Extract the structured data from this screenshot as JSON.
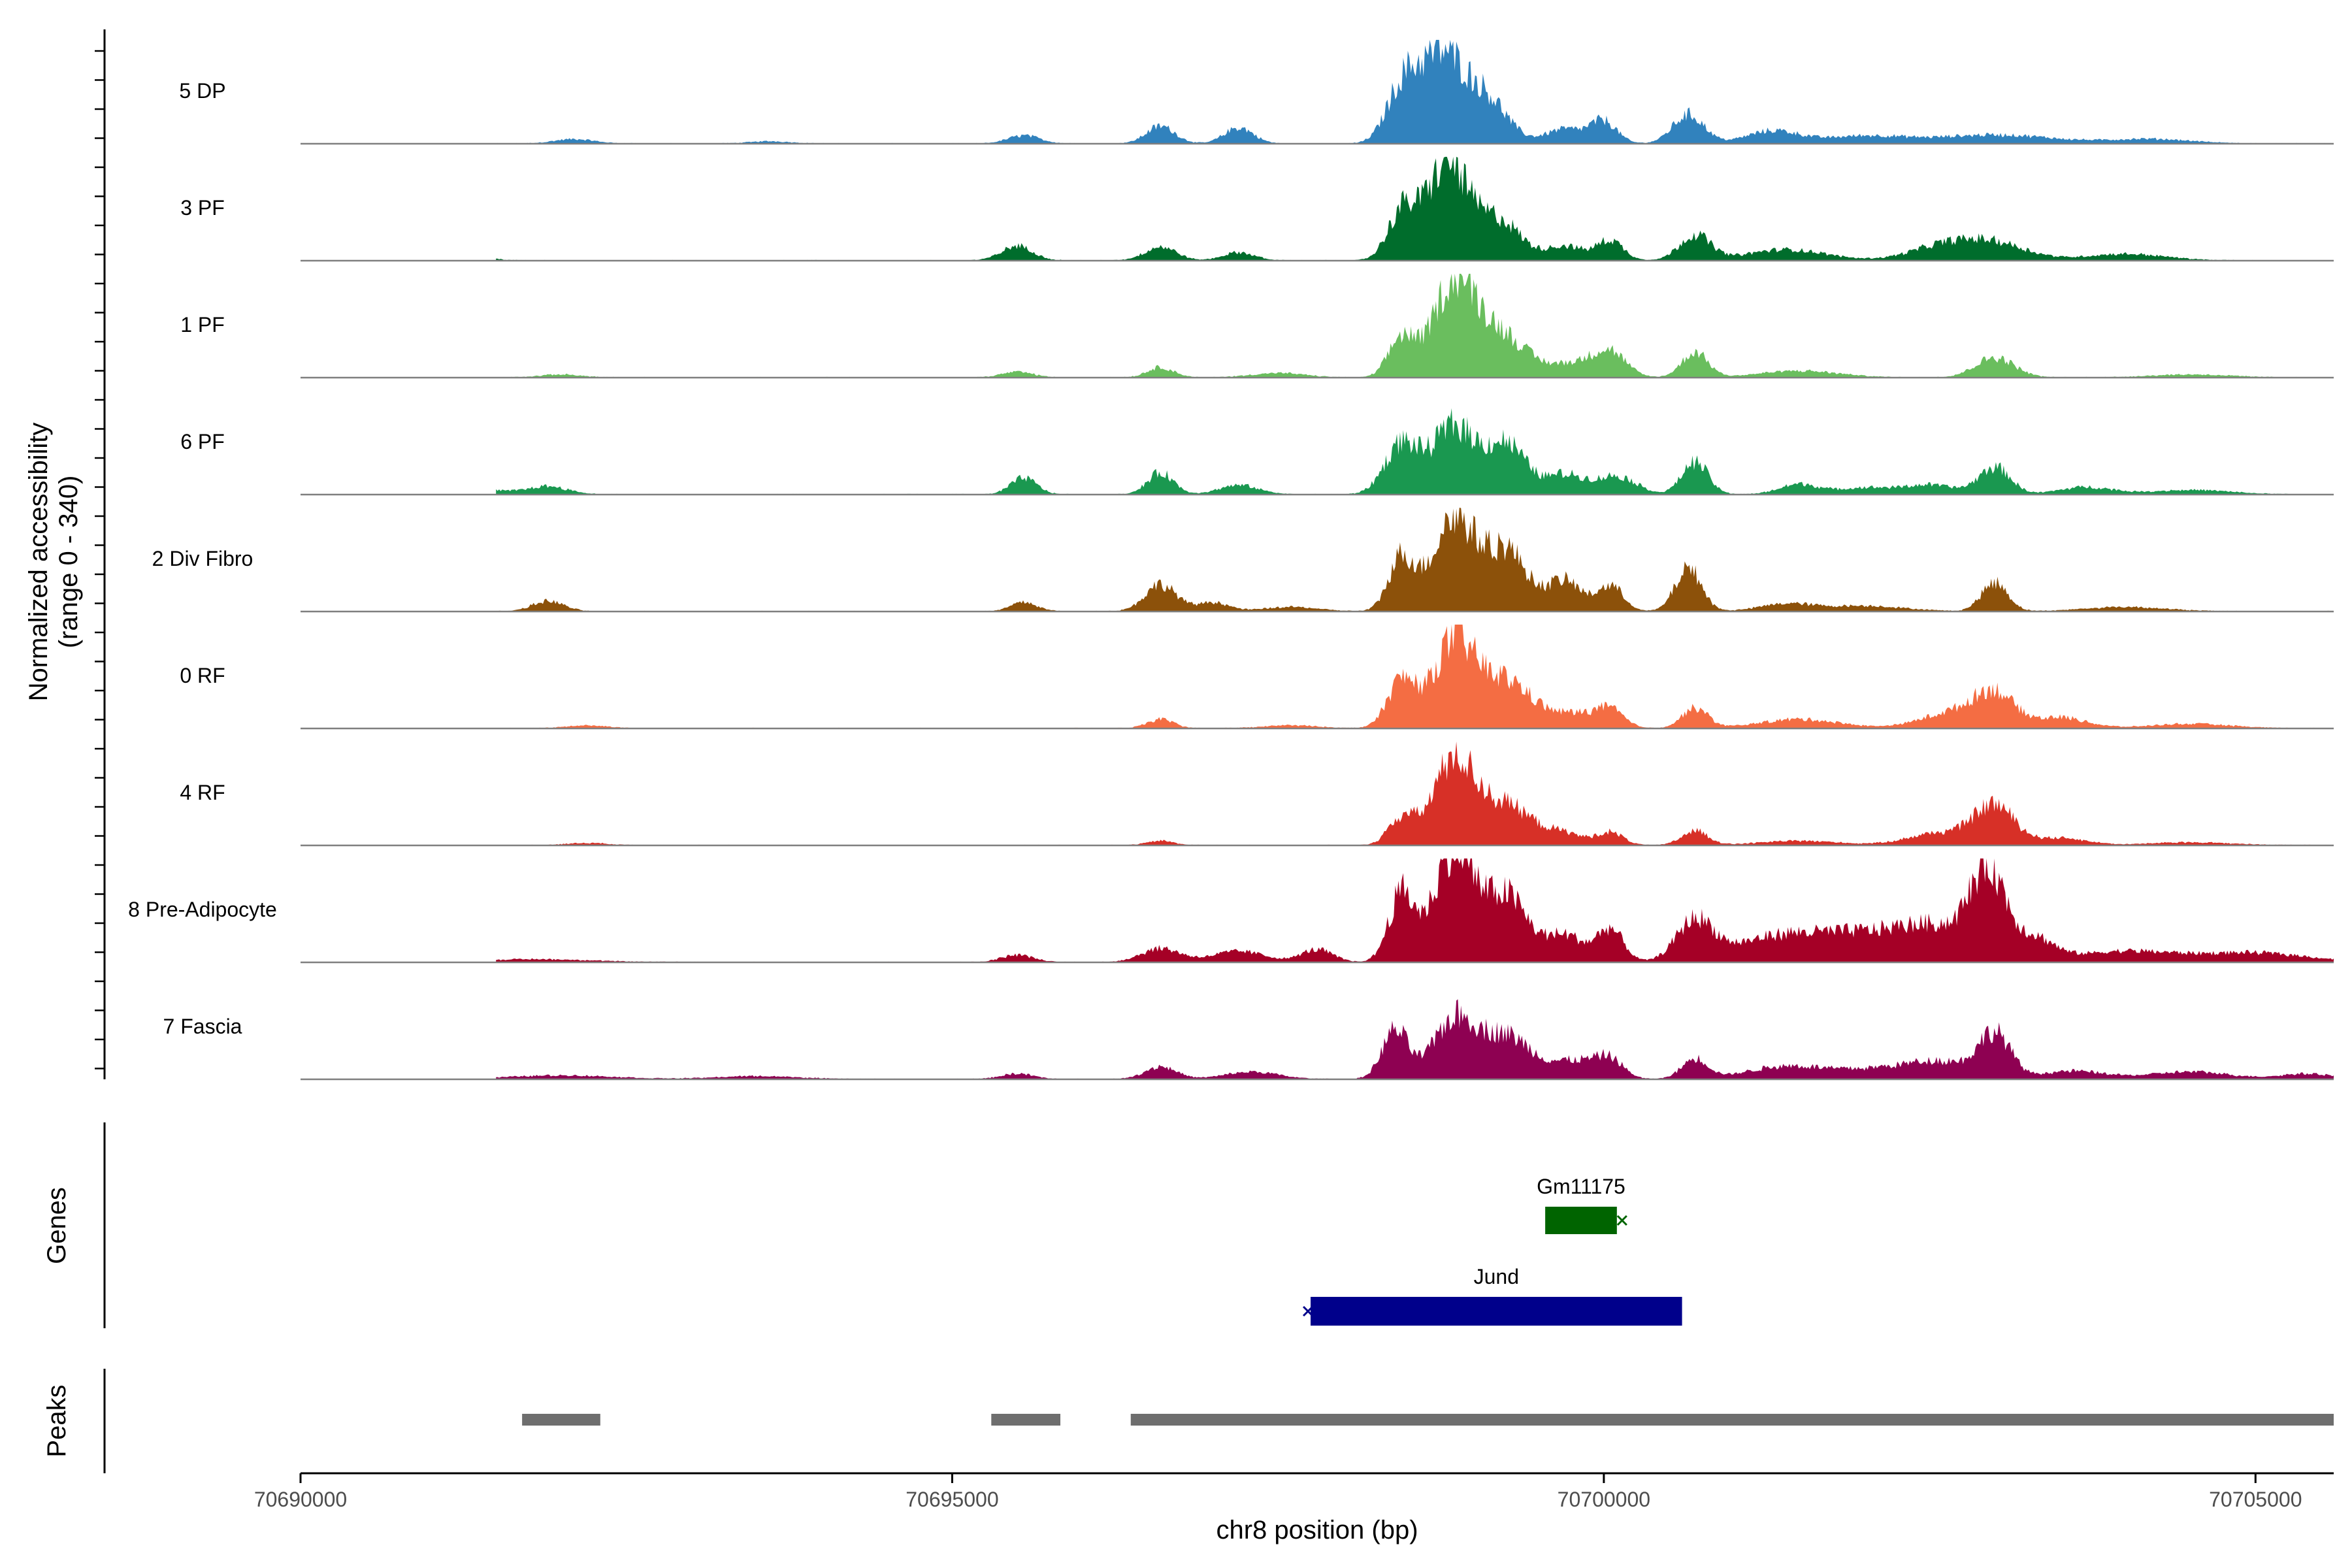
{
  "chart_data": {
    "type": "area",
    "title": "",
    "ylabel_line1": "Normalized accessibility",
    "ylabel_line2": "(range 0 - 340)",
    "ylim": [
      0,
      340
    ],
    "xlabel": "chr8 position (bp)",
    "xlim": [
      70690000,
      70705600
    ],
    "xticks": [
      70690000,
      70695000,
      70700000,
      70705000
    ],
    "xtick_labels": [
      "70690000",
      "70695000",
      "70700000",
      "70705000"
    ],
    "region": [
      70690000,
      70705600
    ],
    "series": [
      {
        "name": "5 DP",
        "color": "#3182BD",
        "peaks": [
          [
            70692100,
            12,
            150
          ],
          [
            70693600,
            6,
            150
          ],
          [
            70695550,
            22,
            120
          ],
          [
            70696600,
            48,
            110
          ],
          [
            70697200,
            44,
            110
          ],
          [
            70698450,
            140,
            120
          ],
          [
            70698750,
            245,
            170
          ],
          [
            70699100,
            120,
            160
          ],
          [
            70699700,
            40,
            150
          ],
          [
            70700000,
            60,
            100
          ],
          [
            70700650,
            80,
            120
          ],
          [
            70701300,
            35,
            200
          ],
          [
            70702000,
            20,
            300
          ],
          [
            70703000,
            24,
            450
          ],
          [
            70704200,
            12,
            300
          ]
        ]
      },
      {
        "name": "3 PF",
        "color": "#006D2C",
        "peaks": [
          [
            70691300,
            18,
            120
          ],
          [
            70695500,
            40,
            120
          ],
          [
            70696600,
            38,
            120
          ],
          [
            70697200,
            22,
            120
          ],
          [
            70698450,
            130,
            110
          ],
          [
            70698800,
            270,
            160
          ],
          [
            70699200,
            110,
            160
          ],
          [
            70699700,
            40,
            150
          ],
          [
            70700050,
            55,
            100
          ],
          [
            70700700,
            70,
            120
          ],
          [
            70701400,
            30,
            300
          ],
          [
            70702600,
            38,
            250
          ],
          [
            70703000,
            45,
            250
          ],
          [
            70704000,
            18,
            300
          ]
        ]
      },
      {
        "name": "1 PF",
        "color": "#6ABE5E",
        "peaks": [
          [
            70692000,
            8,
            150
          ],
          [
            70695500,
            15,
            120
          ],
          [
            70696600,
            28,
            100
          ],
          [
            70697500,
            12,
            200
          ],
          [
            70698450,
            110,
            100
          ],
          [
            70698850,
            260,
            160
          ],
          [
            70699200,
            120,
            200
          ],
          [
            70699800,
            40,
            200
          ],
          [
            70700050,
            60,
            120
          ],
          [
            70700700,
            70,
            100
          ],
          [
            70701500,
            18,
            300
          ],
          [
            70703000,
            55,
            150
          ],
          [
            70704500,
            8,
            300
          ]
        ]
      },
      {
        "name": "6 PF",
        "color": "#1A9850",
        "peaks": [
          [
            70691400,
            12,
            200
          ],
          [
            70691900,
            22,
            150
          ],
          [
            70695550,
            45,
            100
          ],
          [
            70696600,
            60,
            100
          ],
          [
            70697200,
            25,
            150
          ],
          [
            70698450,
            140,
            130
          ],
          [
            70698850,
            190,
            160
          ],
          [
            70699250,
            140,
            150
          ],
          [
            70699700,
            55,
            150
          ],
          [
            70700100,
            50,
            150
          ],
          [
            70700700,
            90,
            100
          ],
          [
            70701500,
            28,
            150
          ],
          [
            70702000,
            18,
            200
          ],
          [
            70702500,
            26,
            200
          ],
          [
            70703000,
            75,
            120
          ],
          [
            70703700,
            20,
            200
          ],
          [
            70704500,
            12,
            300
          ]
        ]
      },
      {
        "name": "2 Div Fibro",
        "color": "#8C510A",
        "peaks": [
          [
            70691900,
            28,
            120
          ],
          [
            70695550,
            25,
            100
          ],
          [
            70696600,
            75,
            120
          ],
          [
            70697000,
            25,
            120
          ],
          [
            70697600,
            12,
            200
          ],
          [
            70698450,
            150,
            100
          ],
          [
            70698850,
            260,
            160
          ],
          [
            70699250,
            170,
            160
          ],
          [
            70699700,
            85,
            130
          ],
          [
            70700050,
            70,
            100
          ],
          [
            70700650,
            120,
            100
          ],
          [
            70701400,
            20,
            200
          ],
          [
            70702000,
            15,
            300
          ],
          [
            70703000,
            80,
            100
          ],
          [
            70704000,
            12,
            300
          ]
        ]
      },
      {
        "name": "0 RF",
        "color": "#F46D43",
        "peaks": [
          [
            70692200,
            8,
            150
          ],
          [
            70696600,
            25,
            100
          ],
          [
            70697600,
            8,
            200
          ],
          [
            70698450,
            130,
            110
          ],
          [
            70698850,
            235,
            160
          ],
          [
            70699250,
            130,
            200
          ],
          [
            70699800,
            40,
            200
          ],
          [
            70700050,
            40,
            100
          ],
          [
            70700700,
            55,
            100
          ],
          [
            70701500,
            25,
            300
          ],
          [
            70702700,
            45,
            250
          ],
          [
            70703000,
            85,
            150
          ],
          [
            70703500,
            30,
            200
          ],
          [
            70704500,
            12,
            300
          ]
        ]
      },
      {
        "name": "4 RF",
        "color": "#D73027",
        "peaks": [
          [
            70692200,
            6,
            150
          ],
          [
            70696600,
            12,
            100
          ],
          [
            70698450,
            75,
            100
          ],
          [
            70698850,
            235,
            160
          ],
          [
            70699250,
            110,
            200
          ],
          [
            70699700,
            30,
            150
          ],
          [
            70700050,
            35,
            100
          ],
          [
            70700700,
            40,
            100
          ],
          [
            70701500,
            12,
            300
          ],
          [
            70702600,
            35,
            250
          ],
          [
            70703000,
            105,
            150
          ],
          [
            70703500,
            20,
            200
          ],
          [
            70704500,
            8,
            300
          ]
        ]
      },
      {
        "name": "8 Pre-Adipocyte",
        "color": "#A50026",
        "peaks": [
          [
            70691800,
            8,
            400
          ],
          [
            70695500,
            20,
            120
          ],
          [
            70696600,
            38,
            150
          ],
          [
            70697200,
            30,
            200
          ],
          [
            70697800,
            35,
            120
          ],
          [
            70698450,
            190,
            100
          ],
          [
            70698850,
            320,
            150
          ],
          [
            70699250,
            185,
            160
          ],
          [
            70699700,
            75,
            150
          ],
          [
            70700050,
            90,
            100
          ],
          [
            70700700,
            110,
            140
          ],
          [
            70701300,
            60,
            350
          ],
          [
            70702000,
            70,
            400
          ],
          [
            70702600,
            80,
            300
          ],
          [
            70702950,
            230,
            130
          ],
          [
            70703300,
            60,
            150
          ],
          [
            70704000,
            30,
            400
          ],
          [
            70705000,
            25,
            400
          ]
        ]
      },
      {
        "name": "7 Fascia",
        "color": "#8E0152",
        "peaks": [
          [
            70692000,
            10,
            400
          ],
          [
            70693500,
            8,
            300
          ],
          [
            70695500,
            15,
            120
          ],
          [
            70696600,
            35,
            120
          ],
          [
            70697300,
            20,
            200
          ],
          [
            70698400,
            135,
            100
          ],
          [
            70698850,
            160,
            160
          ],
          [
            70699250,
            120,
            200
          ],
          [
            70699800,
            50,
            180
          ],
          [
            70700050,
            45,
            100
          ],
          [
            70700700,
            55,
            100
          ],
          [
            70701400,
            35,
            300
          ],
          [
            70702100,
            25,
            300
          ],
          [
            70702600,
            45,
            250
          ],
          [
            70703000,
            120,
            120
          ],
          [
            70703600,
            22,
            250
          ],
          [
            70704500,
            20,
            300
          ],
          [
            70705400,
            15,
            200
          ]
        ]
      }
    ],
    "genes": [
      {
        "name": "Gm11175",
        "start": 70699550,
        "end": 70700100,
        "color": "#006400",
        "strand": "-"
      },
      {
        "name": "Jund",
        "start": 70697750,
        "end": 70700600,
        "color": "#00008B",
        "strand": "-"
      }
    ],
    "genes_title": "Genes",
    "peaks_title": "Peaks",
    "peak_regions": [
      [
        70691700,
        70692300
      ],
      [
        70695300,
        70695830
      ],
      [
        70696370,
        70705600
      ]
    ],
    "colors": {
      "baseline": "#7f7f7f",
      "peak_bar": "#6e6e6e",
      "axis": "#000000"
    }
  }
}
